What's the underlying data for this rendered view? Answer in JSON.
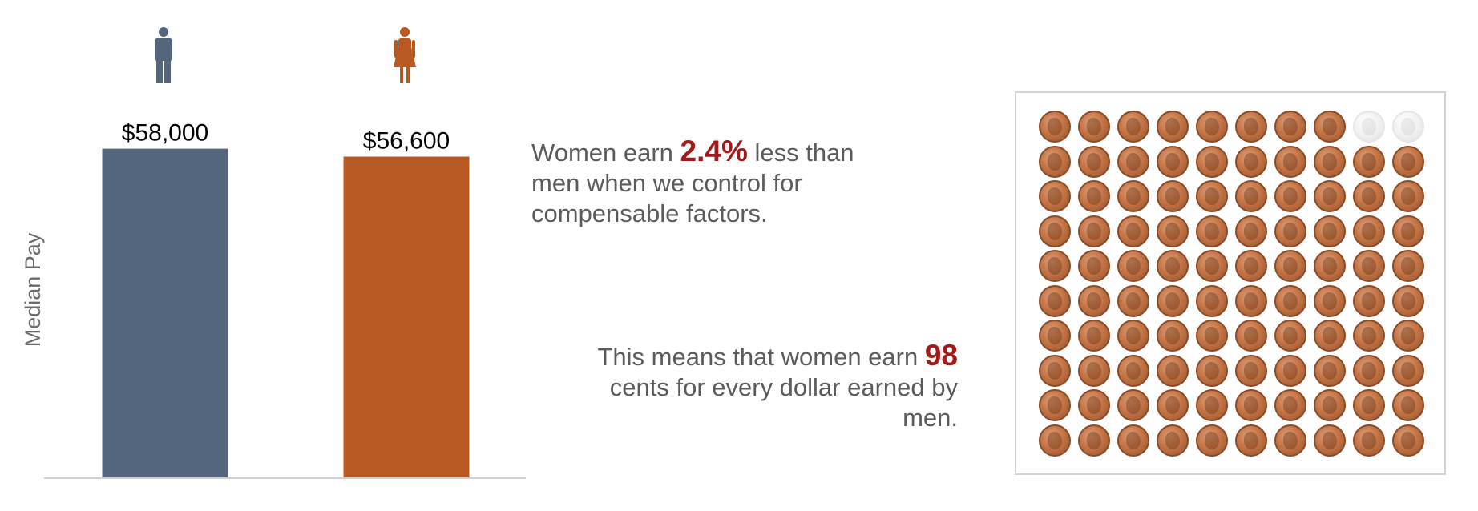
{
  "chart_data": {
    "type": "bar",
    "categories": [
      "Men",
      "Women"
    ],
    "values": [
      58000,
      56600
    ],
    "value_labels": [
      "$58,000",
      "$56,600"
    ],
    "ylabel": "Median Pay",
    "ylim": [
      0,
      59500
    ],
    "grid": false,
    "icons": [
      "man-icon",
      "woman-icon"
    ],
    "colors": [
      "#53667d",
      "#b85822"
    ]
  },
  "stats": {
    "gap_prefix": "Women earn ",
    "gap_value": "2.4%",
    "gap_suffix": " less than men when we control for compensable factors.",
    "cents_prefix": "This means that women earn ",
    "cents_value": "98",
    "cents_suffix": " cents for every dollar earned by men.",
    "highlight_color": "#a31a1a"
  },
  "coins": {
    "total": 100,
    "filled": 98,
    "columns": 10,
    "icon": "penny-icon"
  }
}
